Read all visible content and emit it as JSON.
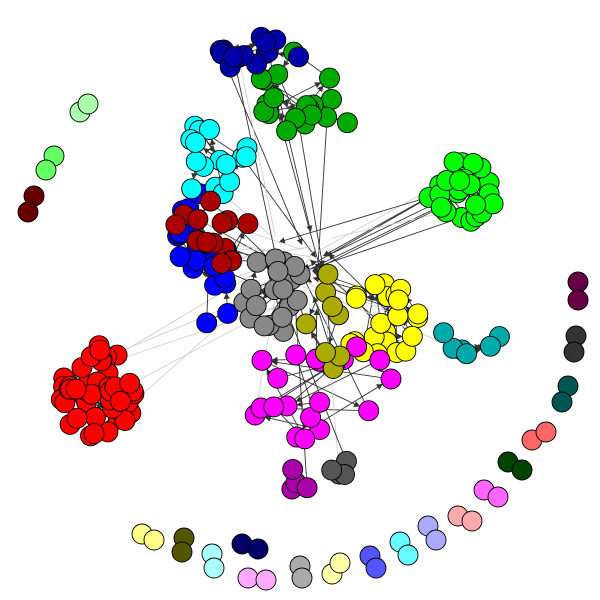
{
  "diagram": {
    "type": "network-graph",
    "layout": "force-directed",
    "edge_style": "directed arrows",
    "node_outline": "#000000",
    "edge_color": "#333333",
    "colors": {
      "red": "#ff0000",
      "dark_red": "#aa0000",
      "blue": "#0000ff",
      "dark_blue": "#0000aa",
      "green": "#00ff00",
      "dark_green": "#00aa00",
      "cyan": "#00ffff",
      "teal": "#00aaaa",
      "yellow": "#ffff00",
      "olive": "#aaaa00",
      "magenta": "#ff00ff",
      "purple": "#aa00aa",
      "gray": "#888888",
      "dark_gray": "#555555"
    },
    "communities": [
      {
        "color": "#ff0000",
        "nodes": 48
      },
      {
        "color": "#0000ff",
        "nodes": 22
      },
      {
        "color": "#00aa00",
        "nodes": 20
      },
      {
        "color": "#00ff00",
        "nodes": 26
      },
      {
        "color": "#00ffff",
        "nodes": 16
      },
      {
        "color": "#ffff00",
        "nodes": 22
      },
      {
        "color": "#ff00ff",
        "nodes": 20
      },
      {
        "color": "#888888",
        "nodes": 22
      },
      {
        "color": "#aa0000",
        "nodes": 14
      },
      {
        "color": "#0000aa",
        "nodes": 14
      },
      {
        "color": "#00aaaa",
        "nodes": 6
      },
      {
        "color": "#aaaa00",
        "nodes": 8
      },
      {
        "color": "#aa00aa",
        "nodes": 4
      },
      {
        "color": "#555555",
        "nodes": 4
      }
    ],
    "isolated_pairs": [
      "#aaffaa",
      "#66ff66",
      "#660000",
      "#660044",
      "#333333",
      "#005555",
      "#ff6666",
      "#004400",
      "#ff66ff",
      "#ffaaaa",
      "#aaaaff",
      "#66ffff",
      "#5555ff",
      "#aaaaaa",
      "#ffffaa",
      "#ffaaff",
      "#aaffff",
      "#000066",
      "#555500",
      "#ffff88"
    ]
  }
}
